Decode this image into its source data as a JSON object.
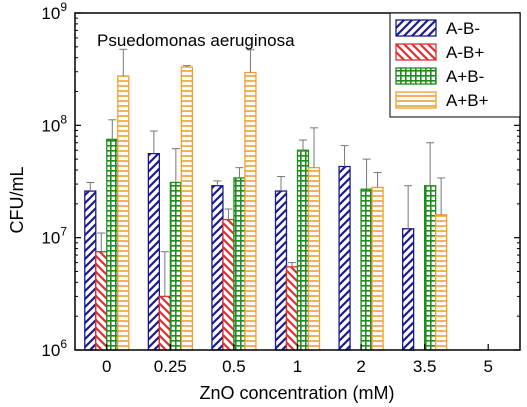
{
  "chart_data": {
    "type": "bar",
    "annotation": "Psuedomonas aeruginosa",
    "xlabel": "ZnO concentration (mM)",
    "ylabel": "CFU/mL",
    "yscale": "log",
    "ylim": [
      1000000,
      1000000000
    ],
    "yticks": [
      {
        "value": 1000000,
        "base": "10",
        "exp": "6"
      },
      {
        "value": 10000000,
        "base": "10",
        "exp": "7"
      },
      {
        "value": 100000000,
        "base": "10",
        "exp": "8"
      },
      {
        "value": 1000000000,
        "base": "10",
        "exp": "9"
      }
    ],
    "categories": [
      "0",
      "0.25",
      "0.5",
      "1",
      "2",
      "3.5",
      "5"
    ],
    "legend_position": "top-right",
    "series": [
      {
        "name": "A-B-",
        "color": "#1a1a8c",
        "pattern": "diag-right",
        "values": [
          26000000,
          56000000,
          29000000,
          26000000,
          43000000,
          12000000,
          null
        ],
        "errors": [
          5000000,
          33000000,
          3000000,
          9000000,
          23000000,
          17000000,
          null
        ]
      },
      {
        "name": "A-B+",
        "color": "#e03030",
        "pattern": "diag-left",
        "values": [
          7500000,
          3000000,
          14500000,
          5500000,
          null,
          null,
          null
        ],
        "errors": [
          3500000,
          4500000,
          3500000,
          500000,
          null,
          null,
          null
        ]
      },
      {
        "name": "A+B-",
        "color": "#1e8c1e",
        "pattern": "grid",
        "values": [
          75000000,
          31000000,
          34000000,
          60000000,
          27000000,
          29000000,
          null
        ],
        "errors": [
          37000000,
          31000000,
          8000000,
          14000000,
          23000000,
          41000000,
          null
        ]
      },
      {
        "name": "A+B+",
        "color": "#f0a030",
        "pattern": "horizontal",
        "values": [
          275000000,
          330000000,
          295000000,
          42000000,
          28000000,
          16000000,
          null
        ],
        "errors": [
          200000000,
          10000000,
          175000000,
          53000000,
          10000000,
          18000000,
          null
        ]
      }
    ]
  }
}
